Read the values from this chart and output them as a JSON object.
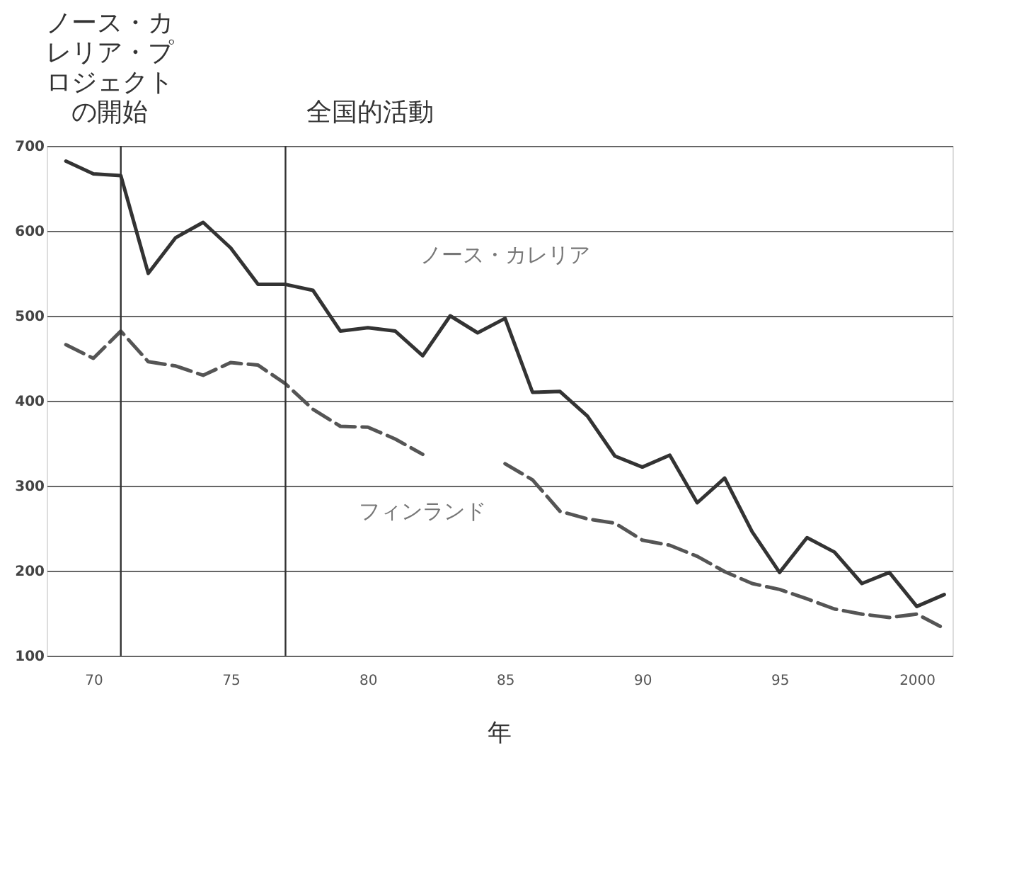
{
  "chart_data": {
    "type": "line",
    "xlabel": "年",
    "x": [
      1969,
      1970,
      1971,
      1972,
      1973,
      1974,
      1975,
      1976,
      1977,
      1978,
      1979,
      1980,
      1981,
      1982,
      1983,
      1984,
      1985,
      1986,
      1987,
      1988,
      1989,
      1990,
      1991,
      1992,
      1993,
      1994,
      1995,
      1996,
      1997,
      1998,
      1999,
      2000,
      2001
    ],
    "series": [
      {
        "name": "ノース・カレリア",
        "color": "#333333",
        "line_style": "solid",
        "values": [
          682,
          667,
          665,
          550,
          592,
          610,
          580,
          537,
          537,
          530,
          482,
          486,
          482,
          453,
          500,
          480,
          497,
          410,
          411,
          382,
          335,
          322,
          336,
          280,
          309,
          246,
          198,
          239,
          222,
          185,
          198,
          158,
          172
        ]
      },
      {
        "name": "フィンランド",
        "color": "#555555",
        "line_style": "dashed",
        "values": [
          466,
          450,
          482,
          446,
          441,
          430,
          445,
          442,
          420,
          390,
          370,
          369,
          355,
          337,
          null,
          null,
          326,
          307,
          270,
          261,
          256,
          236,
          230,
          217,
          199,
          185,
          178,
          167,
          155,
          149,
          145,
          149,
          132
        ]
      }
    ],
    "xlim": [
      1968.3,
      2001.3
    ],
    "xticks": [
      {
        "value": 1970,
        "label": "70"
      },
      {
        "value": 1975,
        "label": "75"
      },
      {
        "value": 1980,
        "label": "80"
      },
      {
        "value": 1985,
        "label": "85"
      },
      {
        "value": 1990,
        "label": "90"
      },
      {
        "value": 1995,
        "label": "95"
      },
      {
        "value": 2000,
        "label": "2000"
      }
    ],
    "ylim": [
      100,
      700
    ],
    "yticks": [
      100,
      200,
      300,
      400,
      500,
      600,
      700
    ],
    "grid": "y",
    "ref_lines": [
      {
        "axis": "x",
        "value": 1971,
        "label": "ノース・カレリア・プロジェクトの開始",
        "color": "#333333"
      },
      {
        "axis": "x",
        "value": 1977,
        "label": "全国的活動",
        "color": "#333333"
      }
    ]
  }
}
